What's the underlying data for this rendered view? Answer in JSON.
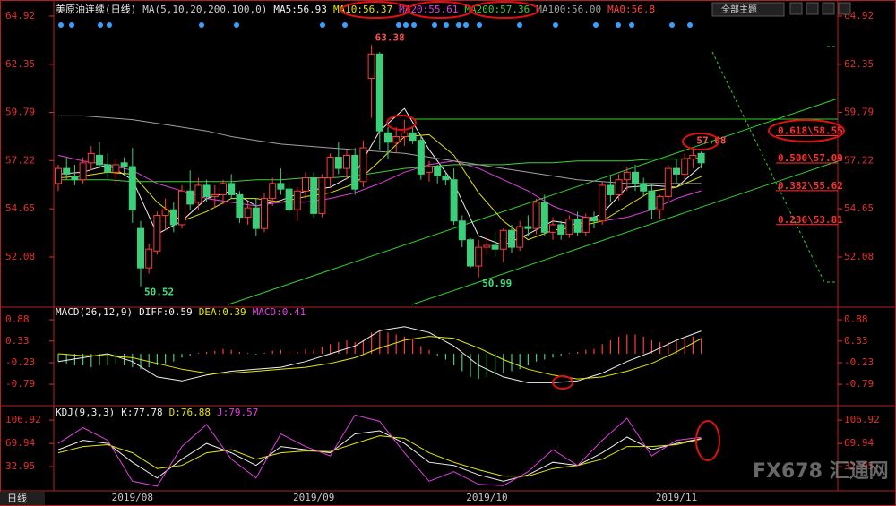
{
  "ui": {
    "theme_button": "全部主题",
    "timeframe": "日线",
    "watermark": "FX678 汇通网"
  },
  "chart_data": [
    {
      "type": "candlestick",
      "title": "美原油连续(日线)",
      "indicator": "MA(5,10,20,200,100,0)",
      "up_color": "#ff3b3b",
      "down_color": "#3ccf7a",
      "ylim": [
        49.55,
        65.54
      ],
      "yticks": [
        52.08,
        54.65,
        57.22,
        59.79,
        62.35,
        64.92
      ],
      "categories": [
        null,
        null,
        null,
        null,
        null,
        null,
        null,
        null,
        null,
        "2019/08",
        null,
        null,
        null,
        null,
        null,
        null,
        null,
        null,
        null,
        null,
        null,
        null,
        null,
        null,
        null,
        null,
        null,
        null,
        null,
        null,
        null,
        "2019/09",
        null,
        null,
        null,
        null,
        null,
        null,
        null,
        null,
        null,
        null,
        null,
        null,
        null,
        null,
        null,
        null,
        null,
        null,
        null,
        null,
        "2019/10",
        null,
        null,
        null,
        null,
        null,
        null,
        null,
        null,
        null,
        null,
        null,
        null,
        null,
        null,
        null,
        null,
        null,
        null,
        null,
        null,
        null,
        null,
        "2019/11",
        null,
        null,
        null
      ],
      "ohlc": [
        [
          56.0,
          57.0,
          55.6,
          56.8
        ],
        [
          56.8,
          57.4,
          56.2,
          56.5
        ],
        [
          56.4,
          57.0,
          55.9,
          56.2
        ],
        [
          56.2,
          57.4,
          56.0,
          57.1
        ],
        [
          57.1,
          58.0,
          56.7,
          57.6
        ],
        [
          57.5,
          58.2,
          56.8,
          57.0
        ],
        [
          57.0,
          57.6,
          56.3,
          56.6
        ],
        [
          56.6,
          57.3,
          56.0,
          57.0
        ],
        [
          57.1,
          57.4,
          56.5,
          56.9
        ],
        [
          56.9,
          57.9,
          53.9,
          54.6
        ],
        [
          53.6,
          54.0,
          50.52,
          51.5
        ],
        [
          51.5,
          52.8,
          51.2,
          52.5
        ],
        [
          52.4,
          54.5,
          52.2,
          54.3
        ],
        [
          54.3,
          55.2,
          53.5,
          54.6
        ],
        [
          54.6,
          55.0,
          53.4,
          53.8
        ],
        [
          53.8,
          55.9,
          53.6,
          55.6
        ],
        [
          55.6,
          56.7,
          54.6,
          54.9
        ],
        [
          55.0,
          56.3,
          54.6,
          55.9
        ],
        [
          55.9,
          56.2,
          55.0,
          55.3
        ],
        [
          55.3,
          55.9,
          54.7,
          55.4
        ],
        [
          55.4,
          56.2,
          54.9,
          56.0
        ],
        [
          56.0,
          56.5,
          55.2,
          55.4
        ],
        [
          55.4,
          55.6,
          53.9,
          54.2
        ],
        [
          54.2,
          55.0,
          53.8,
          54.7
        ],
        [
          54.7,
          55.2,
          53.2,
          53.6
        ],
        [
          53.6,
          55.5,
          53.4,
          55.2
        ],
        [
          55.2,
          56.3,
          54.8,
          56.0
        ],
        [
          56.0,
          56.8,
          55.4,
          55.7
        ],
        [
          55.7,
          56.1,
          54.4,
          54.6
        ],
        [
          54.6,
          55.8,
          54.0,
          55.6
        ],
        [
          55.6,
          56.6,
          55.2,
          56.3
        ],
        [
          56.3,
          56.6,
          54.2,
          54.4
        ],
        [
          54.4,
          56.5,
          54.2,
          56.3
        ],
        [
          56.3,
          57.6,
          55.8,
          57.4
        ],
        [
          57.4,
          58.2,
          56.5,
          56.8
        ],
        [
          56.8,
          57.8,
          56.2,
          57.5
        ],
        [
          57.5,
          57.9,
          55.4,
          55.7
        ],
        [
          56.1,
          58.3,
          55.8,
          57.9
        ],
        [
          61.6,
          63.38,
          59.5,
          62.9
        ],
        [
          62.9,
          63.0,
          57.8,
          58.8
        ],
        [
          58.7,
          59.0,
          57.3,
          58.2
        ],
        [
          58.2,
          59.0,
          57.6,
          58.5
        ],
        [
          58.5,
          59.4,
          58.0,
          58.7
        ],
        [
          58.7,
          59.0,
          58.1,
          58.3
        ],
        [
          58.3,
          58.6,
          56.2,
          56.5
        ],
        [
          56.6,
          57.2,
          56.1,
          56.9
        ],
        [
          56.9,
          57.0,
          56.0,
          56.4
        ],
        [
          56.4,
          56.6,
          55.9,
          56.2
        ],
        [
          56.2,
          56.8,
          53.8,
          54.0
        ],
        [
          54.0,
          54.3,
          52.6,
          53.0
        ],
        [
          53.0,
          53.1,
          51.5,
          51.6
        ],
        [
          51.6,
          53.0,
          50.99,
          52.6
        ],
        [
          52.6,
          53.2,
          52.2,
          52.7
        ],
        [
          52.7,
          53.4,
          52.1,
          52.5
        ],
        [
          52.5,
          53.6,
          51.8,
          53.5
        ],
        [
          53.5,
          53.8,
          52.3,
          52.6
        ],
        [
          52.6,
          54.0,
          52.4,
          53.7
        ],
        [
          53.7,
          54.3,
          53.2,
          53.6
        ],
        [
          53.6,
          55.2,
          53.3,
          55.0
        ],
        [
          55.0,
          55.4,
          53.2,
          53.4
        ],
        [
          53.4,
          54.2,
          53.0,
          53.8
        ],
        [
          53.8,
          54.0,
          53.0,
          53.3
        ],
        [
          53.3,
          54.3,
          53.1,
          54.1
        ],
        [
          54.1,
          54.5,
          53.2,
          53.4
        ],
        [
          53.4,
          54.4,
          53.2,
          54.2
        ],
        [
          54.2,
          54.5,
          53.6,
          54.0
        ],
        [
          54.0,
          56.1,
          53.8,
          55.9
        ],
        [
          55.9,
          56.4,
          55.0,
          55.4
        ],
        [
          55.4,
          56.5,
          55.1,
          56.2
        ],
        [
          56.2,
          56.9,
          55.6,
          56.6
        ],
        [
          56.6,
          57.0,
          55.6,
          56.0
        ],
        [
          56.0,
          56.3,
          55.3,
          55.6
        ],
        [
          55.6,
          56.0,
          54.1,
          54.6
        ],
        [
          54.6,
          55.4,
          54.1,
          55.3
        ],
        [
          55.3,
          57.0,
          55.1,
          56.8
        ],
        [
          56.8,
          57.3,
          56.0,
          56.5
        ],
        [
          56.5,
          57.6,
          56.2,
          57.3
        ],
        [
          57.3,
          57.88,
          56.8,
          57.5
        ],
        [
          57.6,
          57.7,
          56.8,
          57.1
        ]
      ],
      "x": [
        0,
        3,
        6,
        9,
        12,
        15,
        18,
        21,
        24,
        27,
        30,
        33,
        36,
        39,
        42,
        45,
        48,
        51,
        54,
        57,
        60,
        63,
        66,
        69,
        72,
        75,
        78
      ],
      "series": [
        {
          "name": "MA5:56.93",
          "color": "#f0f0f0",
          "values": [
            56.5,
            56.6,
            57.0,
            56.2,
            53.3,
            54.0,
            55.2,
            55.6,
            54.8,
            55.1,
            55.6,
            55.8,
            56.5,
            58.8,
            60.0,
            57.8,
            56.0,
            53.2,
            52.7,
            53.3,
            54.0,
            53.8,
            54.4,
            55.8,
            55.9,
            55.8,
            56.93
          ]
        },
        {
          "name": "MA10:56.37",
          "color": "#e6e600",
          "values": [
            56.3,
            56.4,
            56.6,
            56.5,
            55.0,
            54.0,
            54.5,
            55.2,
            55.2,
            55.0,
            55.3,
            55.5,
            56.0,
            57.2,
            58.5,
            58.6,
            57.5,
            55.5,
            54.0,
            53.0,
            53.5,
            53.7,
            54.0,
            54.8,
            55.6,
            55.8,
            56.37
          ]
        },
        {
          "name": "MA20:55.61",
          "color": "#e040e0",
          "values": [
            57.5,
            57.2,
            57.0,
            56.7,
            56.0,
            55.6,
            55.2,
            55.0,
            54.8,
            55.0,
            55.0,
            55.2,
            55.5,
            56.0,
            56.6,
            57.0,
            57.2,
            56.8,
            56.2,
            55.6,
            54.8,
            54.3,
            54.0,
            54.2,
            54.6,
            55.2,
            55.61
          ]
        },
        {
          "name": "MA200:57.36",
          "color": "#40d040",
          "values": [
            56.2,
            56.2,
            56.2,
            56.1,
            56.1,
            56.1,
            56.1,
            56.1,
            56.2,
            56.2,
            56.3,
            56.3,
            56.4,
            56.6,
            56.8,
            56.9,
            57.0,
            57.0,
            57.0,
            57.1,
            57.1,
            57.2,
            57.2,
            57.2,
            57.3,
            57.3,
            57.36
          ]
        },
        {
          "name": "MA100:56.00",
          "color": "#a0a0a0",
          "values": [
            59.6,
            59.6,
            59.5,
            59.4,
            59.2,
            59.0,
            58.8,
            58.5,
            58.3,
            58.1,
            58.0,
            57.9,
            57.8,
            57.7,
            57.6,
            57.4,
            57.2,
            57.0,
            56.8,
            56.6,
            56.4,
            56.2,
            56.1,
            56.0,
            56.0,
            56.0,
            56.0
          ]
        }
      ],
      "legend_extra": [
        {
          "name": "MA0:56.8",
          "color": "#ff4040"
        }
      ],
      "fib": [
        {
          "value": 58.55,
          "label": "0.618\\58.55"
        },
        {
          "value": 57.09,
          "label": "0.500\\57.09"
        },
        {
          "value": 55.62,
          "label": "0.382\\55.62"
        },
        {
          "value": 53.81,
          "label": "0.236\\53.81"
        }
      ]
    },
    {
      "type": "macd",
      "title": "MACD(26,12,9)",
      "hist_name": "MACD:0.41",
      "hist_name_color": "#e040e0",
      "up_color": "#ff3b3b",
      "down_color": "#3ccf7a",
      "ylim": [
        -1.32,
        1.16
      ],
      "yticks": [
        -0.79,
        -0.23,
        0.33,
        0.88
      ],
      "hist": [
        -0.2,
        -0.25,
        -0.3,
        -0.3,
        -0.35,
        -0.3,
        -0.3,
        -0.25,
        -0.3,
        -0.35,
        -0.4,
        -0.35,
        -0.3,
        -0.25,
        -0.2,
        -0.1,
        -0.05,
        0.02,
        0.05,
        0.08,
        0.12,
        0.1,
        0.05,
        0.02,
        -0.02,
        0.03,
        0.08,
        0.1,
        0.05,
        0.05,
        0.12,
        0.1,
        0.18,
        0.25,
        0.3,
        0.35,
        0.3,
        0.35,
        0.55,
        0.6,
        0.55,
        0.5,
        0.45,
        0.4,
        0.2,
        0.1,
        -0.05,
        -0.15,
        -0.3,
        -0.45,
        -0.6,
        -0.65,
        -0.6,
        -0.55,
        -0.5,
        -0.45,
        -0.4,
        -0.3,
        -0.2,
        -0.15,
        -0.1,
        -0.05,
        0.02,
        0.05,
        0.1,
        0.12,
        0.25,
        0.35,
        0.45,
        0.5,
        0.5,
        0.45,
        0.35,
        0.3,
        0.3,
        0.35,
        0.4,
        0.45,
        0.41
      ],
      "x": [
        0,
        3,
        6,
        9,
        12,
        15,
        18,
        21,
        24,
        27,
        30,
        33,
        36,
        39,
        42,
        45,
        48,
        51,
        54,
        57,
        60,
        63,
        66,
        69,
        72,
        75,
        78
      ],
      "series": [
        {
          "name": "DIFF:0.59",
          "color": "#f0f0f0",
          "values": [
            -0.2,
            -0.1,
            0.0,
            -0.2,
            -0.6,
            -0.7,
            -0.55,
            -0.45,
            -0.4,
            -0.35,
            -0.2,
            0.0,
            0.2,
            0.6,
            0.7,
            0.55,
            0.2,
            -0.3,
            -0.6,
            -0.75,
            -0.75,
            -0.7,
            -0.5,
            -0.2,
            0.05,
            0.35,
            0.59
          ]
        },
        {
          "name": "DEA:0.39",
          "color": "#e6e600",
          "values": [
            0.0,
            -0.05,
            -0.05,
            -0.1,
            -0.25,
            -0.4,
            -0.5,
            -0.5,
            -0.45,
            -0.4,
            -0.35,
            -0.25,
            -0.1,
            0.15,
            0.35,
            0.45,
            0.4,
            0.15,
            -0.15,
            -0.4,
            -0.55,
            -0.65,
            -0.6,
            -0.45,
            -0.25,
            0.05,
            0.39
          ]
        }
      ]
    },
    {
      "type": "kdj",
      "title": "KDJ(9,3,3)",
      "ylim": [
        -1,
        127
      ],
      "yticks": [
        32.95,
        69.94,
        106.92
      ],
      "x": [
        0,
        3,
        6,
        9,
        12,
        15,
        18,
        21,
        24,
        27,
        30,
        33,
        36,
        39,
        42,
        45,
        48,
        51,
        54,
        57,
        60,
        63,
        66,
        69,
        72,
        75,
        78
      ],
      "series": [
        {
          "name": "K:77.78",
          "color": "#f0f0f0",
          "values": [
            60,
            75,
            70,
            40,
            15,
            45,
            70,
            55,
            35,
            65,
            60,
            55,
            85,
            90,
            70,
            40,
            35,
            20,
            10,
            20,
            40,
            35,
            55,
            80,
            60,
            70,
            77.78
          ]
        },
        {
          "name": "D:76.88",
          "color": "#e6e600",
          "values": [
            55,
            65,
            68,
            55,
            30,
            35,
            55,
            60,
            45,
            55,
            58,
            57,
            70,
            82,
            78,
            55,
            40,
            28,
            18,
            18,
            30,
            35,
            45,
            65,
            65,
            68,
            76.88
          ]
        },
        {
          "name": "J:79.57",
          "color": "#e040e0",
          "values": [
            70,
            95,
            75,
            10,
            2,
            65,
            100,
            45,
            15,
            85,
            65,
            50,
            115,
            105,
            55,
            10,
            25,
            5,
            3,
            25,
            60,
            35,
            75,
            110,
            50,
            75,
            79.57
          ]
        }
      ]
    }
  ]
}
